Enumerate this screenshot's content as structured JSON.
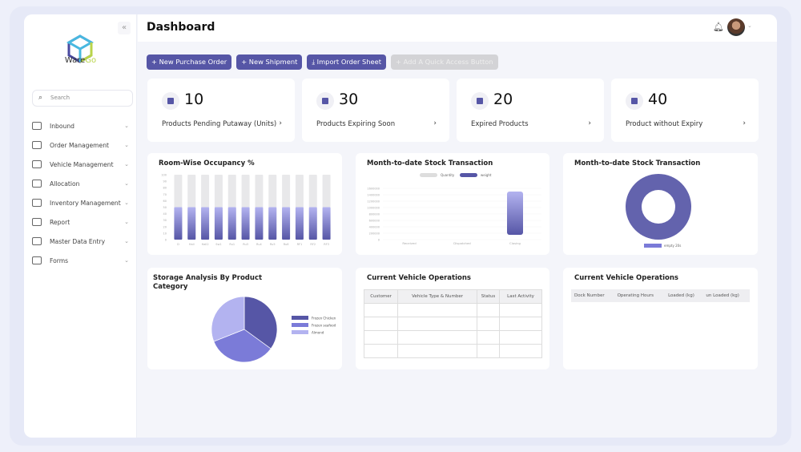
{
  "brand": {
    "name_a": "Ware",
    "name_b": "Go"
  },
  "sidebar": {
    "search_placeholder": "Search",
    "items": [
      {
        "label": "Inbound",
        "icon": "inbound-icon"
      },
      {
        "label": "Order Management",
        "icon": "order-icon"
      },
      {
        "label": "Vehicle Management",
        "icon": "truck-icon"
      },
      {
        "label": "Allocation",
        "icon": "move-icon"
      },
      {
        "label": "Inventory Management",
        "icon": "inventory-icon"
      },
      {
        "label": "Report",
        "icon": "report-icon"
      },
      {
        "label": "Master Data Entry",
        "icon": "monitor-icon"
      },
      {
        "label": "Forms",
        "icon": "forms-icon"
      }
    ]
  },
  "header": {
    "title": "Dashboard"
  },
  "actions": [
    "+ New Purchase Order",
    "+ New Shipment",
    "⤓ Import Order Sheet",
    "+ Add A Quick Access Button"
  ],
  "kpis": [
    {
      "value": "10",
      "label": "Products Pending Putaway (Units)"
    },
    {
      "value": "30",
      "label": "Products Expiring Soon"
    },
    {
      "value": "20",
      "label": "Expired Products"
    },
    {
      "value": "40",
      "label": "Product without Expiry"
    }
  ],
  "colors": {
    "accent": "#5656a6",
    "light": "#b3b3f0",
    "mid": "#7b7bd8"
  },
  "chart_data": [
    {
      "type": "bar",
      "title": "Room-Wise Occupancy %",
      "categories": [
        "D",
        "Hall",
        "Hall2",
        "Sw1",
        "Ru1",
        "Ru3",
        "Ru4",
        "Ru5",
        "Ru6",
        "RF1",
        "RF2",
        "RF3"
      ],
      "values": [
        50,
        50,
        50,
        50,
        50,
        50,
        50,
        50,
        50,
        50,
        50,
        50
      ],
      "ylim": [
        0,
        100
      ],
      "yticks": [
        0,
        10,
        20,
        30,
        40,
        50,
        60,
        70,
        80,
        90,
        100
      ]
    },
    {
      "type": "bar",
      "title": "Month-to-date Stock Transaction",
      "categories": [
        "Received",
        "Dispatched",
        "Closing"
      ],
      "series": [
        {
          "name": "Quantity",
          "values": [
            0,
            0,
            0
          ]
        },
        {
          "name": "weight",
          "values": [
            0,
            0,
            1500000
          ]
        }
      ],
      "ylim": [
        0,
        1600000
      ],
      "yticks": [
        0,
        200000,
        400000,
        600000,
        800000,
        1000000,
        1200000,
        1400000,
        1600000
      ],
      "legend": "top"
    },
    {
      "type": "pie",
      "title": "Month-to-date Stock Transaction",
      "donut": true,
      "labels": [
        "empty 20s"
      ],
      "values": [
        100
      ],
      "legend": "bottom"
    },
    {
      "type": "pie",
      "title": "Storage Analysis By Product Category",
      "labels": [
        "Frozen Chicken",
        "Frozen seafood",
        "Almond"
      ],
      "values": [
        35,
        34,
        31
      ],
      "legend": "right"
    }
  ],
  "vehicle_ops": {
    "title": "Current Vehicle Operations",
    "columns": [
      "Customer",
      "Vehicle Type & Number",
      "Status",
      "Last Activity"
    ]
  },
  "dock_ops": {
    "title": "Current Vehicle Operations",
    "columns": [
      "Dock Number",
      "Operating Hours",
      "Loaded (kg)",
      "un Loaded (kg)"
    ]
  }
}
